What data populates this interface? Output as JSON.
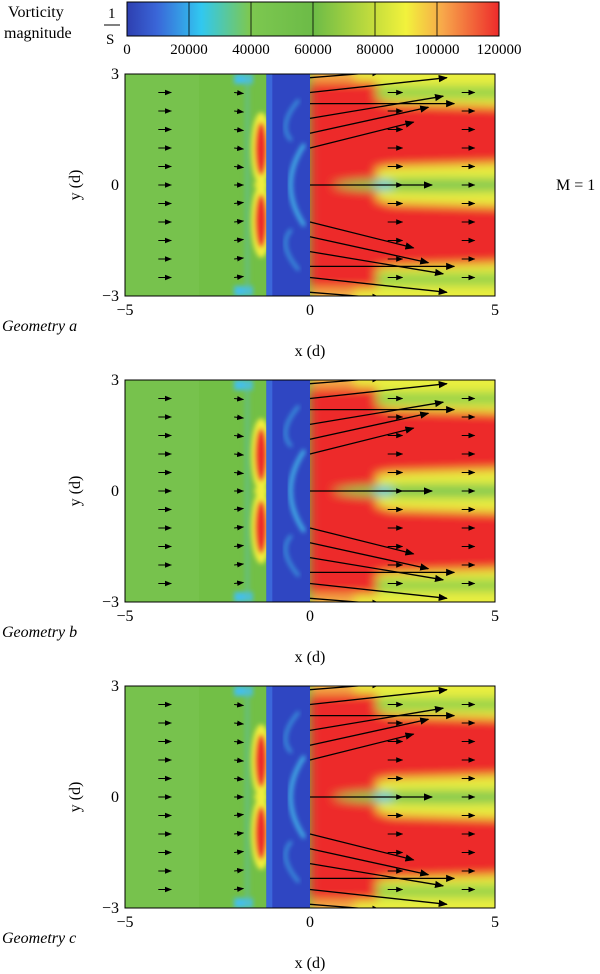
{
  "colorbar": {
    "title_line1": "Vorticity",
    "title_line2": "magnitude",
    "unit_num": "1",
    "unit_den": "S",
    "ticks": [
      "0",
      "20000",
      "40000",
      "60000",
      "80000",
      "100000",
      "120000"
    ]
  },
  "side_label": "M = 1",
  "panels": [
    {
      "caption": "Geometry a"
    },
    {
      "caption": "Geometry b"
    },
    {
      "caption": "Geometry c"
    }
  ],
  "axes": {
    "xlabel": "x (d)",
    "ylabel": "y (d)",
    "xticks": [
      "−5",
      "0",
      "5"
    ],
    "yticks": [
      "3",
      "0",
      "−3"
    ]
  },
  "colors": {
    "colormap": [
      "#2e3fb0",
      "#31c8f0",
      "#7dc850",
      "#6cbb47",
      "#e8f23c",
      "#f7a64a",
      "#ed2b2b"
    ],
    "arrow": "#000000"
  },
  "chart_data": [
    {
      "type": "heatmap",
      "title": "Geometry a",
      "xlabel": "x (d)",
      "ylabel": "y (d)",
      "xlim": [
        -5,
        5
      ],
      "ylim": [
        -3,
        3
      ],
      "colorbar_range": [
        0,
        120000
      ],
      "colorbar_label": "Vorticity magnitude 1/S",
      "obstacle_x": [
        -1.2,
        0
      ]
    },
    {
      "type": "heatmap",
      "title": "Geometry b",
      "xlabel": "x (d)",
      "ylabel": "y (d)",
      "xlim": [
        -5,
        5
      ],
      "ylim": [
        -3,
        3
      ],
      "colorbar_range": [
        0,
        120000
      ],
      "colorbar_label": "Vorticity magnitude 1/S",
      "obstacle_x": [
        -1.2,
        0
      ]
    },
    {
      "type": "heatmap",
      "title": "Geometry c",
      "xlabel": "x (d)",
      "ylabel": "y (d)",
      "xlim": [
        -5,
        5
      ],
      "ylim": [
        -3,
        3
      ],
      "colorbar_range": [
        0,
        120000
      ],
      "colorbar_label": "Vorticity magnitude 1/S",
      "obstacle_x": [
        -1.2,
        0
      ]
    }
  ]
}
